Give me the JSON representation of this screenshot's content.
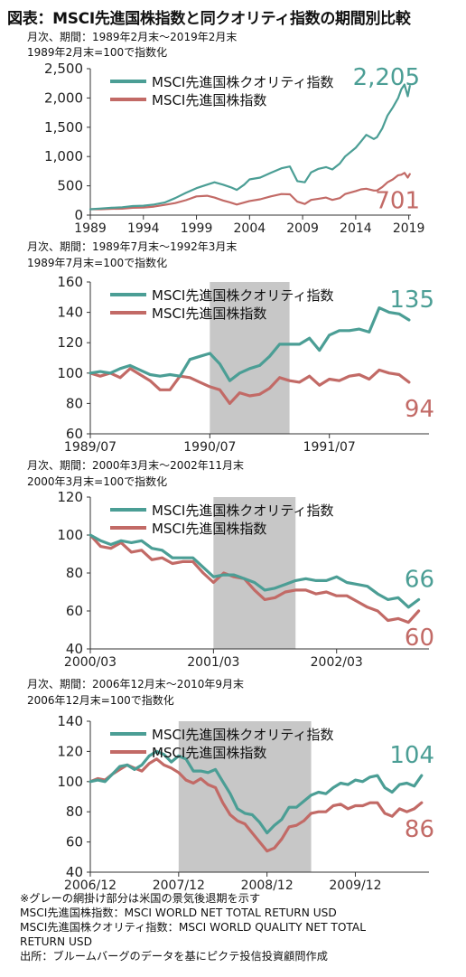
{
  "title": "図表：MSCI先進国株指数と同クオリティ指数の期間別比較",
  "palette": {
    "quality": "#4b9e95",
    "msci": "#c26a66",
    "shade": "#bdbdbd",
    "axis": "#333333"
  },
  "chart_data": [
    {
      "type": "line",
      "subtitle": [
        "月次、期間：1989年2月末～2019年2月末",
        "1989年2月末=100で指数化"
      ],
      "xlim": [
        1989,
        2019.2
      ],
      "ylim": [
        0,
        2500
      ],
      "yticks": [
        0,
        500,
        1000,
        1500,
        2000,
        2500
      ],
      "ytick_labels": [
        "0",
        "500",
        "1,000",
        "1,500",
        "2,000",
        "2,500"
      ],
      "xticks": [
        1989,
        1994,
        1999,
        2004,
        2009,
        2014,
        2019
      ],
      "xtick_labels": [
        "1989",
        "1994",
        "1999",
        "2004",
        "2009",
        "2014",
        "2019"
      ],
      "legend_position": "top-left",
      "recessions": [],
      "end_labels": {
        "quality": "2,205",
        "msci": "701"
      },
      "series": [
        {
          "name": "MSCI先進国株クオリティ指数",
          "key": "quality",
          "color": "#4b9e95",
          "x": [
            1989,
            1990,
            1991,
            1992,
            1993,
            1994,
            1995,
            1996,
            1997,
            1998,
            1999,
            2000,
            2000.7,
            2001.5,
            2002.3,
            2002.8,
            2003.5,
            2004,
            2005,
            2006,
            2007,
            2007.8,
            2008.5,
            2009.2,
            2009.8,
            2010.5,
            2011.2,
            2011.8,
            2012.5,
            2013,
            2014,
            2014.5,
            2015,
            2015.7,
            2016,
            2016.5,
            2017,
            2017.5,
            2018,
            2018.3,
            2018.6,
            2018.9,
            2019.1
          ],
          "values": [
            100,
            112,
            125,
            135,
            155,
            160,
            180,
            215,
            290,
            380,
            460,
            520,
            560,
            520,
            470,
            430,
            520,
            610,
            640,
            720,
            800,
            830,
            580,
            560,
            730,
            790,
            820,
            780,
            880,
            1000,
            1150,
            1260,
            1370,
            1300,
            1330,
            1480,
            1700,
            1840,
            2000,
            2150,
            2230,
            2030,
            2205
          ]
        },
        {
          "name": "MSCI先進国株指数",
          "key": "msci",
          "color": "#c26a66",
          "x": [
            1989,
            1990,
            1991,
            1992,
            1993,
            1994,
            1995,
            1996,
            1997,
            1998,
            1999,
            2000,
            2000.7,
            2001.5,
            2002.3,
            2002.8,
            2003.5,
            2004,
            2005,
            2006,
            2007,
            2007.8,
            2008.5,
            2009.2,
            2009.8,
            2010.5,
            2011.2,
            2011.8,
            2012.5,
            2013,
            2014,
            2014.5,
            2015,
            2015.7,
            2016,
            2016.5,
            2017,
            2017.5,
            2018,
            2018.3,
            2018.6,
            2018.9,
            2019.1
          ],
          "values": [
            100,
            100,
            108,
            110,
            125,
            130,
            145,
            175,
            205,
            255,
            320,
            330,
            300,
            250,
            210,
            180,
            215,
            240,
            270,
            320,
            360,
            355,
            230,
            190,
            260,
            280,
            300,
            260,
            290,
            360,
            410,
            440,
            450,
            420,
            420,
            480,
            560,
            610,
            680,
            690,
            720,
            640,
            701
          ]
        }
      ]
    },
    {
      "type": "line",
      "subtitle": [
        "月次、期間：1989年7月末～1992年3月末",
        "1989年7月末=100で指数化"
      ],
      "xlim": [
        0,
        34
      ],
      "ylim": [
        60,
        160
      ],
      "yticks": [
        60,
        80,
        100,
        120,
        140,
        160
      ],
      "ytick_labels": [
        "60",
        "80",
        "100",
        "120",
        "140",
        "160"
      ],
      "xticks": [
        0,
        12,
        24
      ],
      "xtick_labels": [
        "1989/07",
        "1990/07",
        "1991/07"
      ],
      "legend_position": "top-left",
      "recessions": [
        [
          12,
          20
        ]
      ],
      "end_labels": {
        "quality": "135",
        "msci": "94"
      },
      "series": [
        {
          "name": "MSCI先進国株クオリティ指数",
          "key": "quality",
          "color": "#4b9e95",
          "x": [
            0,
            1,
            2,
            3,
            4,
            5,
            6,
            7,
            8,
            9,
            10,
            11,
            12,
            13,
            14,
            15,
            16,
            17,
            18,
            19,
            20,
            21,
            22,
            23,
            24,
            25,
            26,
            27,
            28,
            29,
            30,
            31,
            32
          ],
          "values": [
            100,
            101,
            100,
            103,
            105,
            102,
            99,
            98,
            99,
            98,
            109,
            111,
            113,
            106,
            95,
            100,
            103,
            105,
            111,
            119,
            119,
            119,
            123,
            115,
            125,
            128,
            128,
            129,
            127,
            143,
            140,
            139,
            135
          ]
        },
        {
          "name": "MSCI先進国株指数",
          "key": "msci",
          "color": "#c26a66",
          "x": [
            0,
            1,
            2,
            3,
            4,
            5,
            6,
            7,
            8,
            9,
            10,
            11,
            12,
            13,
            14,
            15,
            16,
            17,
            18,
            19,
            20,
            21,
            22,
            23,
            24,
            25,
            26,
            27,
            28,
            29,
            30,
            31,
            32
          ],
          "values": [
            100,
            98,
            100,
            97,
            103,
            99,
            95,
            89,
            89,
            98,
            97,
            94,
            91,
            89,
            80,
            87,
            85,
            86,
            90,
            97,
            95,
            94,
            98,
            92,
            96,
            95,
            98,
            99,
            96,
            102,
            100,
            99,
            94
          ]
        }
      ]
    },
    {
      "type": "line",
      "subtitle": [
        "月次、期間：2000年3月末～2002年11月末",
        "2000年3月末=100で指数化"
      ],
      "xlim": [
        0,
        33
      ],
      "ylim": [
        40,
        120
      ],
      "yticks": [
        40,
        60,
        80,
        100,
        120
      ],
      "ytick_labels": [
        "40",
        "60",
        "80",
        "100",
        "120"
      ],
      "xticks": [
        0,
        12,
        24
      ],
      "xtick_labels": [
        "2000/03",
        "2001/03",
        "2002/03"
      ],
      "legend_position": "top-left",
      "recessions": [
        [
          12,
          20
        ]
      ],
      "end_labels": {
        "quality": "66",
        "msci": "60"
      },
      "series": [
        {
          "name": "MSCI先進国株クオリティ指数",
          "key": "quality",
          "color": "#4b9e95",
          "x": [
            0,
            1,
            2,
            3,
            4,
            5,
            6,
            7,
            8,
            9,
            10,
            11,
            12,
            13,
            14,
            15,
            16,
            17,
            18,
            19,
            20,
            21,
            22,
            23,
            24,
            25,
            26,
            27,
            28,
            29,
            30,
            31,
            32
          ],
          "values": [
            100,
            97,
            95,
            97,
            96,
            97,
            93,
            92,
            88,
            88,
            88,
            83,
            78,
            79,
            79,
            77,
            75,
            71,
            72,
            74,
            76,
            77,
            76,
            76,
            78,
            75,
            74,
            73,
            69,
            66,
            67,
            62,
            66
          ]
        },
        {
          "name": "MSCI先進国株指数",
          "key": "msci",
          "color": "#c26a66",
          "x": [
            0,
            1,
            2,
            3,
            4,
            5,
            6,
            7,
            8,
            9,
            10,
            11,
            12,
            13,
            14,
            15,
            16,
            17,
            18,
            19,
            20,
            21,
            22,
            23,
            24,
            25,
            26,
            27,
            28,
            29,
            30,
            31,
            32
          ],
          "values": [
            100,
            94,
            93,
            96,
            91,
            92,
            87,
            88,
            85,
            86,
            86,
            80,
            75,
            80,
            78,
            77,
            71,
            66,
            67,
            70,
            71,
            71,
            69,
            70,
            68,
            68,
            65,
            62,
            60,
            55,
            56,
            54,
            60
          ]
        }
      ]
    },
    {
      "type": "line",
      "subtitle": [
        "月次、期間：2006年12月末～2010年9月末",
        "2006年12月末=100で指数化"
      ],
      "xlim": [
        0,
        46
      ],
      "ylim": [
        40,
        140
      ],
      "yticks": [
        40,
        60,
        80,
        100,
        120,
        140
      ],
      "ytick_labels": [
        "40",
        "60",
        "80",
        "100",
        "120",
        "140"
      ],
      "xticks": [
        0,
        12,
        24,
        36
      ],
      "xtick_labels": [
        "2006/12",
        "2007/12",
        "2008/12",
        "2009/12"
      ],
      "legend_position": "top-left",
      "recessions": [
        [
          12,
          30
        ]
      ],
      "end_labels": {
        "quality": "104",
        "msci": "86"
      },
      "series": [
        {
          "name": "MSCI先進国株クオリティ指数",
          "key": "quality",
          "color": "#4b9e95",
          "x": [
            0,
            1,
            2,
            3,
            4,
            5,
            6,
            7,
            8,
            9,
            10,
            11,
            12,
            13,
            14,
            15,
            16,
            17,
            18,
            19,
            20,
            21,
            22,
            23,
            24,
            25,
            26,
            27,
            28,
            29,
            30,
            31,
            32,
            33,
            34,
            35,
            36,
            37,
            38,
            39,
            40,
            41,
            42,
            43,
            44,
            45
          ],
          "values": [
            100,
            101,
            100,
            105,
            110,
            111,
            108,
            111,
            117,
            120,
            118,
            113,
            117,
            115,
            107,
            107,
            106,
            108,
            100,
            92,
            82,
            79,
            78,
            73,
            66,
            71,
            75,
            83,
            83,
            87,
            91,
            93,
            92,
            96,
            99,
            98,
            101,
            100,
            103,
            104,
            96,
            93,
            98,
            99,
            97,
            104
          ]
        },
        {
          "name": "MSCI先進国株指数",
          "key": "msci",
          "color": "#c26a66",
          "x": [
            0,
            1,
            2,
            3,
            4,
            5,
            6,
            7,
            8,
            9,
            10,
            11,
            12,
            13,
            14,
            15,
            16,
            17,
            18,
            19,
            20,
            21,
            22,
            23,
            24,
            25,
            26,
            27,
            28,
            29,
            30,
            31,
            32,
            33,
            34,
            35,
            36,
            37,
            38,
            39,
            40,
            41,
            42,
            43,
            44,
            45
          ],
          "values": [
            100,
            102,
            101,
            105,
            108,
            111,
            109,
            107,
            112,
            115,
            111,
            109,
            106,
            101,
            99,
            102,
            98,
            96,
            86,
            78,
            74,
            72,
            66,
            60,
            54,
            56,
            62,
            70,
            71,
            74,
            79,
            80,
            80,
            84,
            85,
            82,
            84,
            84,
            86,
            86,
            79,
            77,
            82,
            80,
            82,
            86
          ]
        }
      ]
    }
  ],
  "footer": [
    "※グレーの網掛け部分は米国の景気後退期を示す",
    "MSCI先進国株指数：MSCI WORLD NET TOTAL RETURN USD",
    "MSCI先進国株クオリティ指数：MSCI WORLD QUALITY NET TOTAL",
    "RETURN USD",
    "出所：ブルームバーグのデータを基にピクテ投信投資顧問作成"
  ]
}
